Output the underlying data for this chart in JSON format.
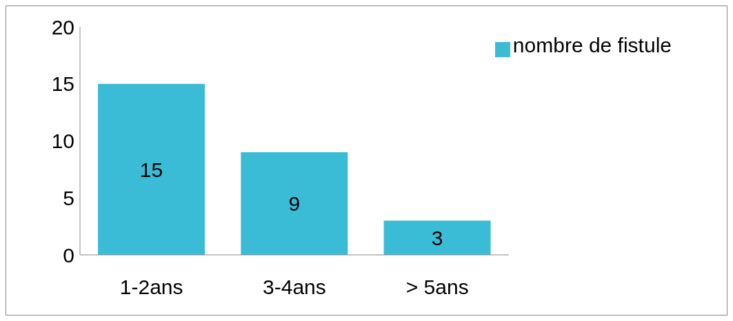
{
  "chart_data": {
    "type": "bar",
    "categories": [
      "1-2ans",
      "3-4ans",
      "> 5ans"
    ],
    "series": [
      {
        "name": "nombre de fistule",
        "color": "#3bbcd6",
        "values": [
          15,
          9,
          3
        ]
      }
    ],
    "ylim": [
      0,
      20
    ],
    "yticks": [
      0,
      5,
      10,
      15,
      20
    ],
    "grid": false,
    "legend": "top right",
    "data_labels": true
  }
}
